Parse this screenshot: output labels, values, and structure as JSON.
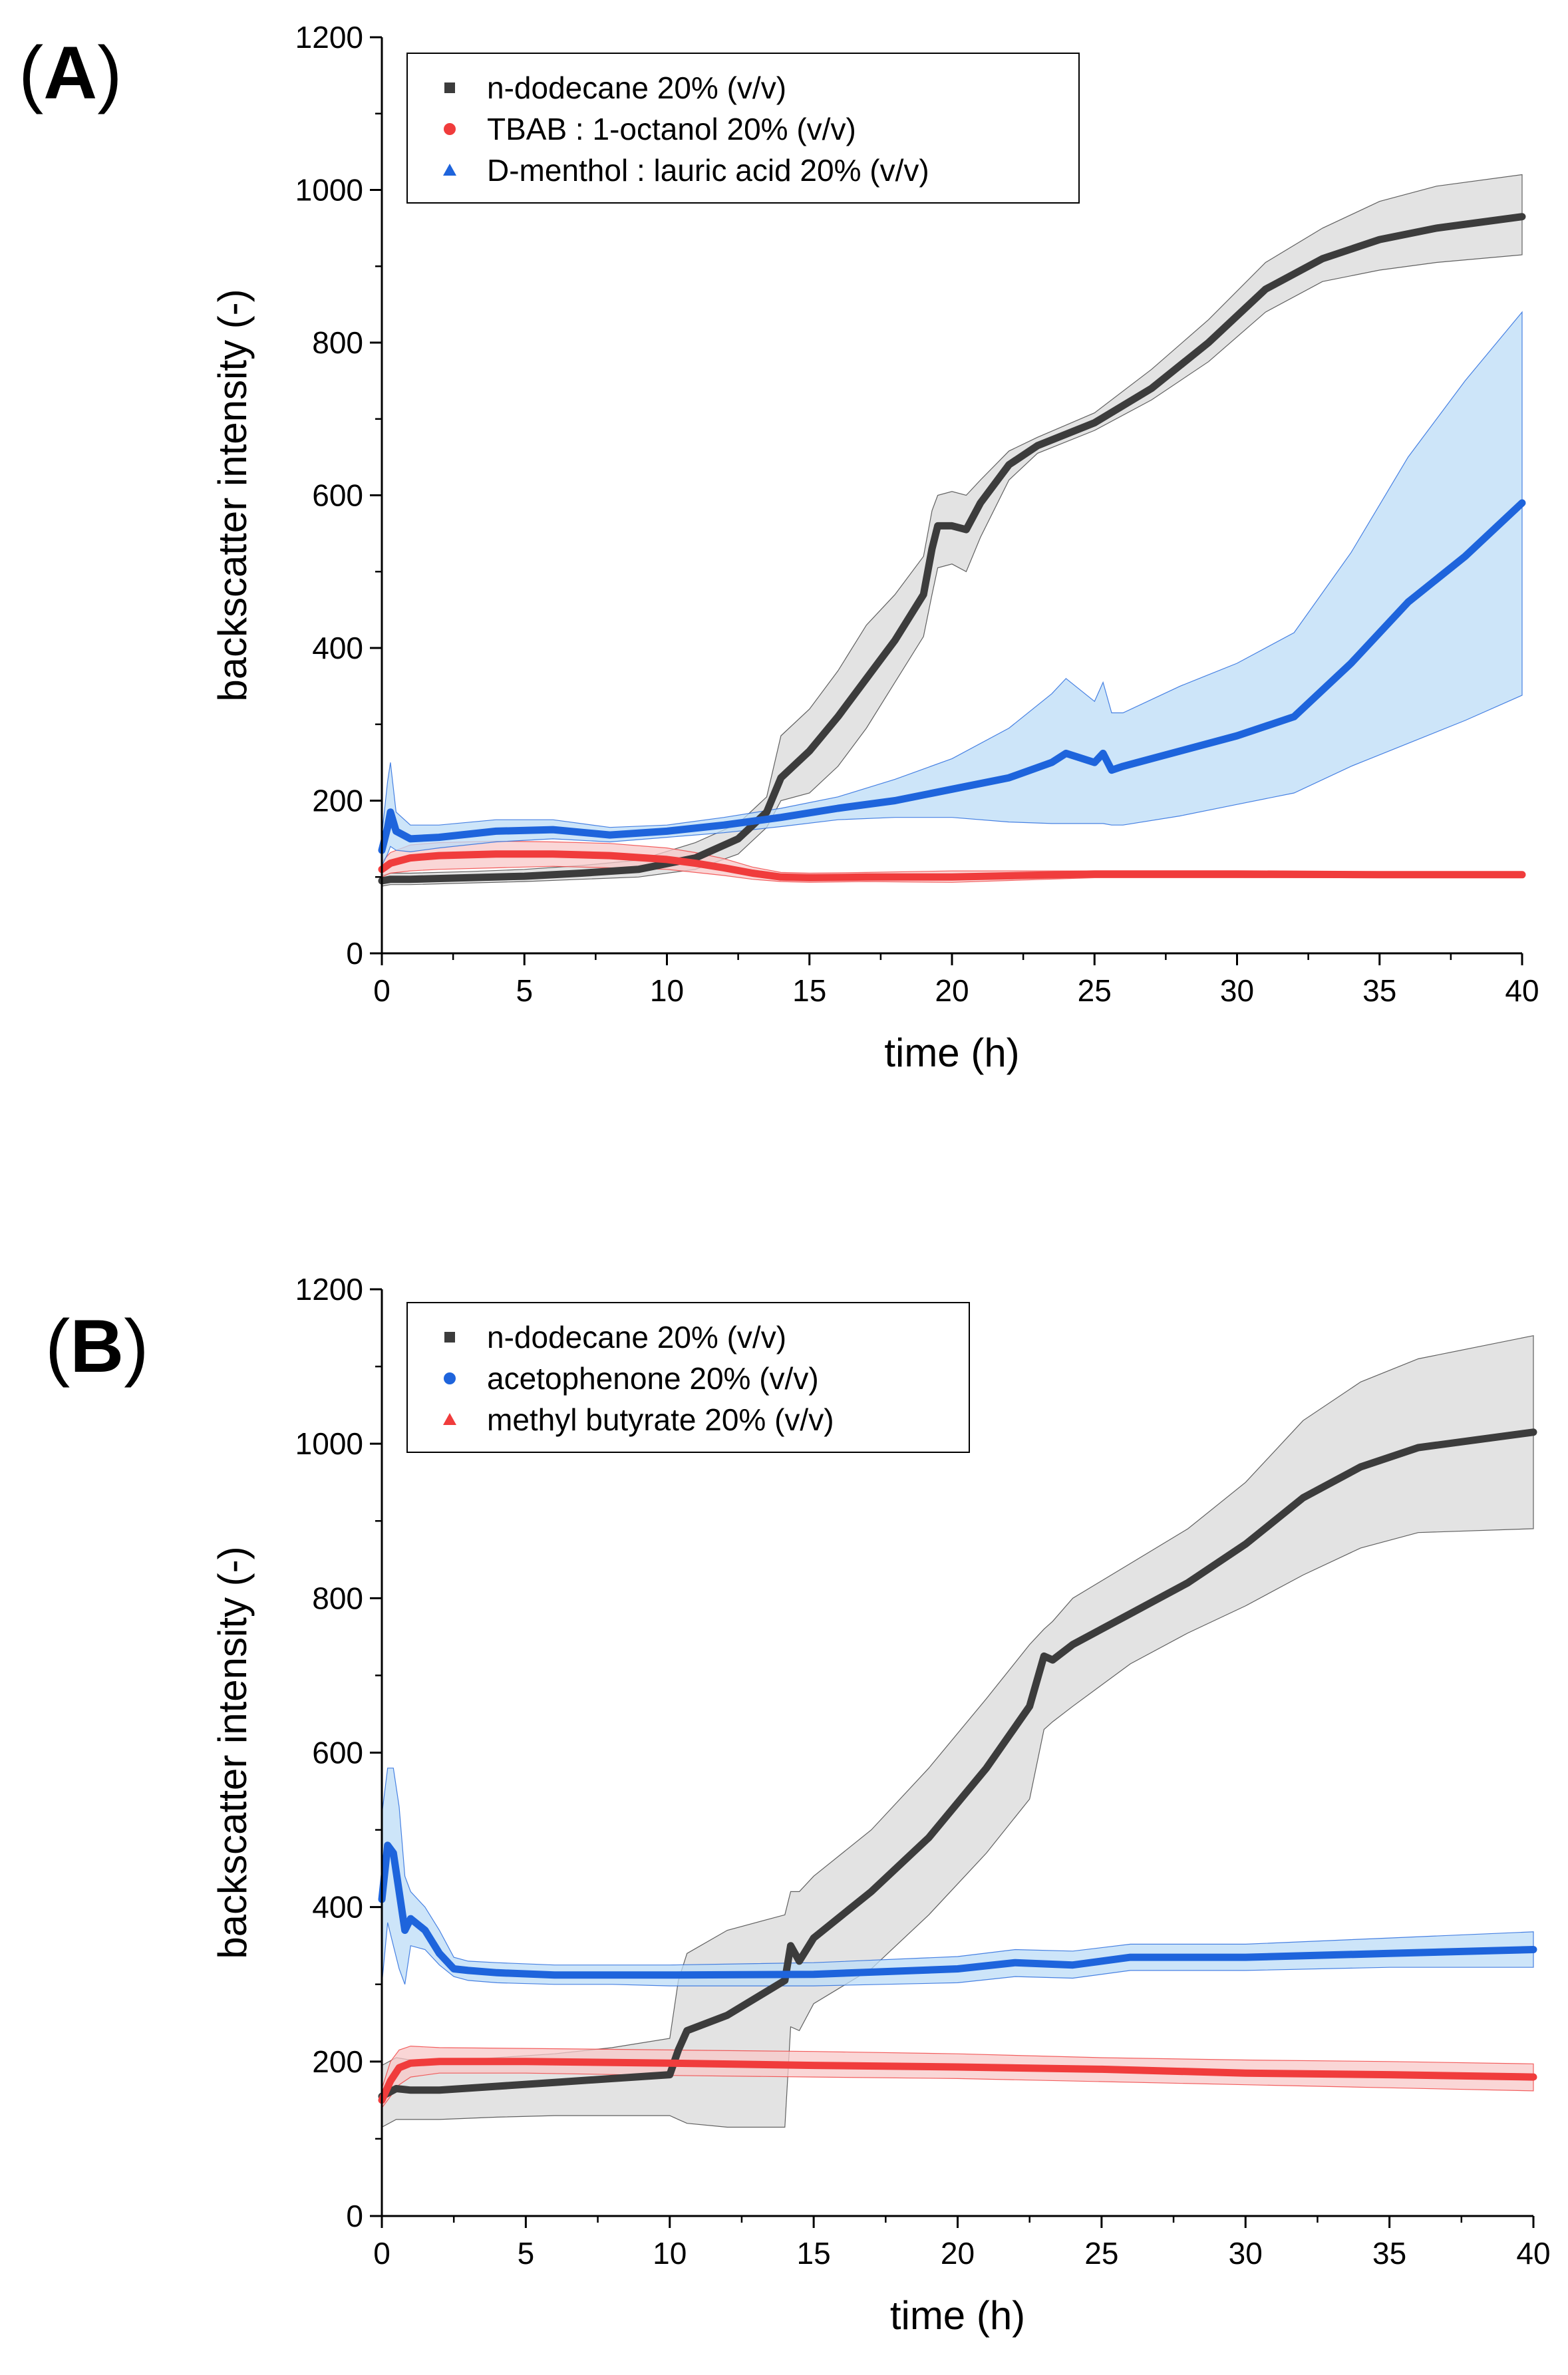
{
  "chart_data": [
    {
      "type": "line",
      "panel_label": "A",
      "title": "",
      "xlabel": "time (h)",
      "ylabel": "backscatter intensity (-)",
      "xlim": [
        0,
        40
      ],
      "ylim": [
        0,
        1200
      ],
      "xticks": [
        0,
        5,
        10,
        15,
        20,
        25,
        30,
        35,
        40
      ],
      "yticks": [
        0,
        200,
        400,
        600,
        800,
        1000,
        1200
      ],
      "legend_position": "top-left",
      "grid": false,
      "series": [
        {
          "name": "n-dodecane 20% (v/v)",
          "marker": "square",
          "color": "#3c3c3c",
          "band_color": "#d9d9d9",
          "x": [
            0,
            0.3,
            1,
            3,
            5,
            7,
            9,
            11,
            12.5,
            13.5,
            14,
            15,
            16,
            17,
            18,
            19,
            19.3,
            19.5,
            20,
            20.5,
            21,
            22,
            23,
            25,
            27,
            29,
            31,
            33,
            35,
            37,
            40
          ],
          "y": [
            95,
            97,
            97,
            99,
            101,
            105,
            110,
            125,
            150,
            185,
            230,
            265,
            310,
            360,
            410,
            470,
            530,
            560,
            560,
            555,
            590,
            640,
            665,
            695,
            740,
            800,
            870,
            910,
            935,
            950,
            965
          ],
          "lower": [
            88,
            90,
            90,
            92,
            94,
            97,
            100,
            110,
            130,
            165,
            200,
            210,
            245,
            295,
            355,
            415,
            470,
            505,
            510,
            500,
            545,
            620,
            655,
            685,
            725,
            775,
            840,
            880,
            895,
            905,
            915
          ],
          "upper": [
            102,
            105,
            105,
            107,
            110,
            115,
            122,
            145,
            170,
            205,
            285,
            320,
            370,
            430,
            470,
            520,
            580,
            600,
            605,
            600,
            620,
            658,
            676,
            708,
            765,
            830,
            905,
            950,
            985,
            1005,
            1020
          ]
        },
        {
          "name": "TBAB : 1-octanol 20% (v/v)",
          "marker": "circle",
          "color": "#f03c3c",
          "band_color": "#f8c8c8",
          "x": [
            0,
            0.3,
            1,
            2,
            4,
            6,
            8,
            10,
            11,
            12,
            13,
            14,
            15,
            17,
            20,
            25,
            30,
            35,
            40
          ],
          "y": [
            110,
            118,
            125,
            128,
            130,
            130,
            128,
            123,
            118,
            112,
            105,
            100,
            99,
            100,
            100,
            104,
            104,
            103,
            103
          ],
          "lower": [
            100,
            105,
            108,
            110,
            112,
            114,
            112,
            110,
            106,
            102,
            97,
            94,
            93,
            94,
            93,
            99,
            99,
            99,
            99
          ],
          "upper": [
            120,
            132,
            142,
            145,
            147,
            146,
            144,
            138,
            132,
            124,
            113,
            106,
            105,
            106,
            108,
            108,
            108,
            107,
            107
          ]
        },
        {
          "name": "D-menthol : lauric acid 20% (v/v)",
          "marker": "triangle",
          "color": "#1e64dc",
          "band_color": "#bcdcf7",
          "x": [
            0,
            0.2,
            0.3,
            0.5,
            1,
            2,
            4,
            6,
            8,
            10,
            12,
            14,
            16,
            18,
            20,
            22,
            23.5,
            24,
            25,
            25.3,
            25.6,
            26,
            28,
            30,
            32,
            34,
            36,
            38,
            40
          ],
          "y": [
            135,
            165,
            185,
            160,
            150,
            152,
            160,
            162,
            155,
            160,
            168,
            178,
            190,
            200,
            215,
            230,
            250,
            262,
            250,
            262,
            240,
            245,
            265,
            285,
            310,
            380,
            460,
            520,
            590
          ],
          "lower": [
            115,
            130,
            140,
            135,
            133,
            138,
            146,
            150,
            146,
            152,
            158,
            166,
            175,
            178,
            178,
            172,
            170,
            170,
            170,
            170,
            168,
            168,
            180,
            195,
            210,
            245,
            275,
            305,
            338
          ],
          "upper": [
            155,
            225,
            250,
            185,
            168,
            168,
            175,
            175,
            165,
            168,
            178,
            190,
            205,
            228,
            255,
            295,
            340,
            360,
            330,
            355,
            315,
            315,
            350,
            380,
            420,
            525,
            650,
            750,
            840
          ]
        }
      ]
    },
    {
      "type": "line",
      "panel_label": "B",
      "title": "",
      "xlabel": "time (h)",
      "ylabel": "backscatter intensity (-)",
      "xlim": [
        0,
        40
      ],
      "ylim": [
        0,
        1200
      ],
      "xticks": [
        0,
        5,
        10,
        15,
        20,
        25,
        30,
        35,
        40
      ],
      "yticks": [
        0,
        200,
        400,
        600,
        800,
        1000,
        1200
      ],
      "legend_position": "top-left",
      "grid": false,
      "series": [
        {
          "name": "n-dodecane 20% (v/v)",
          "marker": "square",
          "color": "#3c3c3c",
          "band_color": "#d9d9d9",
          "x": [
            0,
            0.5,
            1,
            2,
            4,
            6,
            8,
            10,
            10.3,
            10.6,
            12,
            14,
            14.2,
            14.5,
            15,
            17,
            19,
            21,
            22.5,
            23,
            23.3,
            24,
            26,
            28,
            30,
            32,
            34,
            36,
            40
          ],
          "y": [
            155,
            165,
            163,
            163,
            168,
            173,
            178,
            183,
            215,
            240,
            260,
            305,
            350,
            330,
            360,
            420,
            490,
            580,
            660,
            725,
            720,
            740,
            780,
            820,
            870,
            930,
            970,
            995,
            1015
          ],
          "lower": [
            115,
            125,
            125,
            125,
            128,
            130,
            130,
            130,
            125,
            120,
            115,
            115,
            245,
            240,
            275,
            320,
            390,
            470,
            540,
            630,
            640,
            660,
            715,
            755,
            790,
            830,
            865,
            885,
            890
          ],
          "upper": [
            195,
            205,
            202,
            200,
            205,
            210,
            218,
            230,
            305,
            340,
            370,
            390,
            420,
            420,
            440,
            500,
            580,
            670,
            740,
            760,
            770,
            800,
            845,
            890,
            950,
            1030,
            1080,
            1110,
            1140
          ]
        },
        {
          "name": "acetophenone 20% (v/v)",
          "marker": "circle",
          "color": "#1e64dc",
          "band_color": "#bcdcf7",
          "x": [
            0,
            0.2,
            0.4,
            0.6,
            0.8,
            1,
            1.5,
            2,
            2.5,
            3,
            4,
            6,
            8,
            10,
            15,
            20,
            22,
            24,
            26,
            30,
            35,
            40
          ],
          "y": [
            410,
            480,
            470,
            420,
            370,
            385,
            370,
            340,
            320,
            318,
            315,
            312,
            312,
            312,
            313,
            320,
            328,
            325,
            335,
            335,
            340,
            345
          ],
          "lower": [
            300,
            380,
            350,
            320,
            300,
            350,
            345,
            325,
            310,
            305,
            302,
            300,
            300,
            298,
            298,
            302,
            310,
            308,
            318,
            318,
            322,
            322
          ],
          "upper": [
            520,
            580,
            580,
            530,
            440,
            420,
            400,
            370,
            335,
            330,
            328,
            325,
            325,
            325,
            328,
            336,
            345,
            343,
            352,
            352,
            360,
            368
          ]
        },
        {
          "name": "methyl butyrate 20% (v/v)",
          "marker": "triangle",
          "color": "#f03c3c",
          "band_color": "#f8c8c8",
          "x": [
            0,
            0.3,
            0.6,
            1,
            2,
            5,
            10,
            15,
            20,
            25,
            30,
            35,
            40
          ],
          "y": [
            150,
            175,
            192,
            198,
            200,
            200,
            198,
            195,
            193,
            190,
            185,
            183,
            180
          ],
          "lower": [
            140,
            155,
            170,
            180,
            185,
            185,
            182,
            180,
            178,
            174,
            170,
            166,
            162
          ],
          "upper": [
            165,
            200,
            215,
            220,
            218,
            217,
            215,
            213,
            210,
            205,
            202,
            200,
            197
          ]
        }
      ]
    }
  ]
}
